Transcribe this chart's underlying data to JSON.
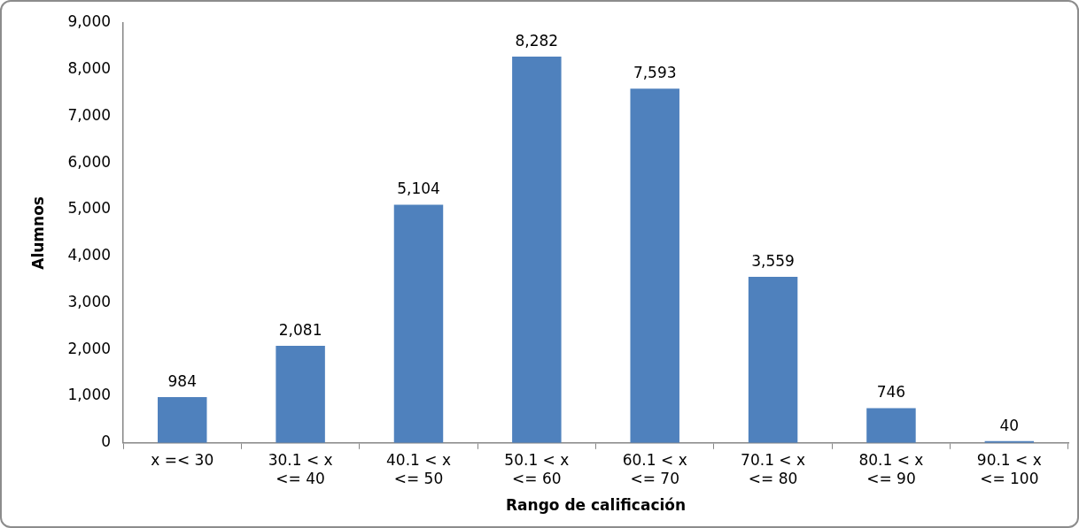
{
  "chart_data": {
    "type": "bar",
    "xlabel": "Rango de calificación",
    "ylabel": "Alumnos",
    "categories": [
      "x =< 30",
      "30.1 < x <= 40",
      "40.1 < x <= 50",
      "50.1 < x <= 60",
      "60.1 < x <= 70",
      "70.1 < x <= 80",
      "80.1 < x <= 90",
      "90.1 < x <= 100"
    ],
    "values": [
      984,
      2081,
      5104,
      8282,
      7593,
      3559,
      746,
      40
    ],
    "color": "#4f81bd",
    "ylim": [
      0,
      9000
    ],
    "yticks": [
      {
        "value": 0,
        "label": "0"
      },
      {
        "value": 1000,
        "label": "1,000"
      },
      {
        "value": 2000,
        "label": "2,000"
      },
      {
        "value": 3000,
        "label": "3,000"
      },
      {
        "value": 4000,
        "label": "4,000"
      },
      {
        "value": 5000,
        "label": "5,000"
      },
      {
        "value": 6000,
        "label": "6,000"
      },
      {
        "value": 7000,
        "label": "7,000"
      },
      {
        "value": 8000,
        "label": "8,000"
      },
      {
        "value": 9000,
        "label": "9,000"
      }
    ],
    "value_labels": [
      "984",
      "2,081",
      "5,104",
      "8,282",
      "7,593",
      "3,559",
      "746",
      "40"
    ],
    "grid": false,
    "legend": false
  }
}
